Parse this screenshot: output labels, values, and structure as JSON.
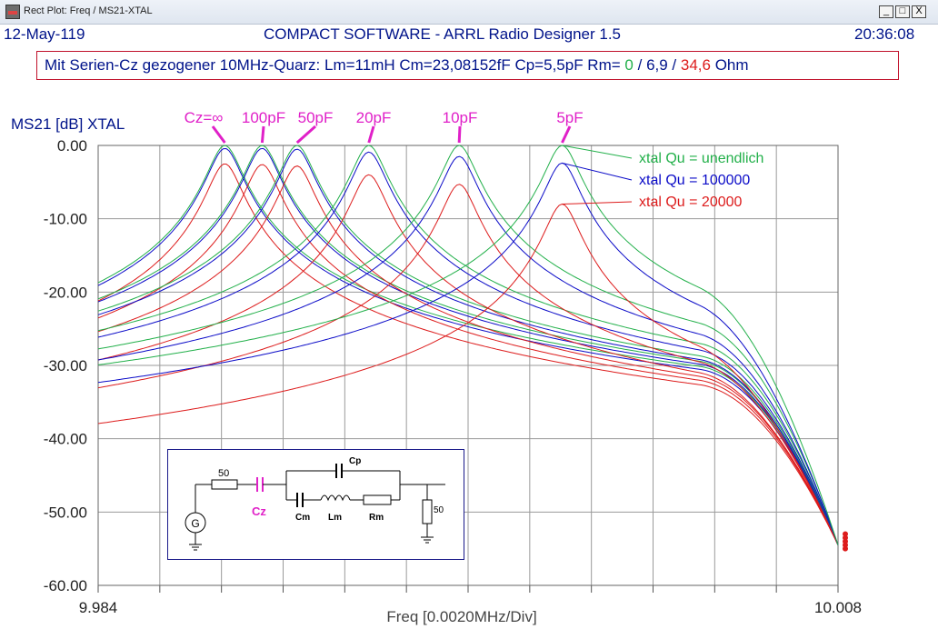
{
  "window": {
    "title": "Rect Plot: Freq / MS21-XTAL",
    "minimize_label": "_",
    "maximize_label": "□",
    "close_label": "X"
  },
  "header": {
    "date": "12-May-119",
    "app_name": "COMPACT SOFTWARE - ARRL Radio Designer 1.5",
    "time": "20:36:08"
  },
  "info": {
    "text": "Mit Serien-Cz gezogener 10MHz-Quarz: Lm=11mH  Cm=23,08152fF  Cp=5,5pF  Rm=",
    "rm_green": "0",
    "sep1": " / ",
    "rm_blue": "6,9",
    "sep2": " / ",
    "rm_red": "34,6",
    "unit": " Ohm"
  },
  "colors": {
    "green": "#22b04a",
    "blue": "#0b0bc8",
    "red": "#dd1c1c",
    "magenta": "#e020c8",
    "axis_text": "#00138a"
  },
  "chart_data": {
    "type": "line",
    "ylabel": "MS21 [dB] XTAL",
    "xlabel": "Freq [0.0020MHz/Div]",
    "xlim": [
      9.984,
      10.008
    ],
    "ylim": [
      -60,
      0
    ],
    "x_tick_labels": [
      "9.984",
      "10.008"
    ],
    "y_ticks": [
      "0.00",
      "-10.00",
      "-20.00",
      "-30.00",
      "-40.00",
      "-50.00",
      "-60.00"
    ],
    "grid": true,
    "cz_labels": [
      "Cz=∞",
      "100pF",
      "50pF",
      "20pF",
      "10pF",
      "5pF"
    ],
    "series_peaks_mhz": [
      9.98811,
      9.98932,
      9.99045,
      9.99278,
      9.99571,
      9.99905
    ],
    "peak_db": {
      "unendlich": [
        0,
        0,
        0,
        0,
        0,
        0
      ],
      "100000": [
        -0.4,
        -0.4,
        -0.5,
        -0.9,
        -1.5,
        -2.4
      ],
      "20000": [
        -2.5,
        -2.6,
        -2.8,
        -4.0,
        -5.3,
        -8.0
      ]
    },
    "legend": [
      {
        "name": "xtal Qu = unendlich",
        "color": "green"
      },
      {
        "name": "xtal Qu = 100000",
        "color": "blue"
      },
      {
        "name": "xtal Qu = 20000",
        "color": "red"
      }
    ]
  },
  "circuit": {
    "r_source": "50",
    "cz": "Cz",
    "cp": "Cp",
    "cm": "Cm",
    "lm": "Lm",
    "rm": "Rm",
    "r_load": "50",
    "gen": "G"
  }
}
